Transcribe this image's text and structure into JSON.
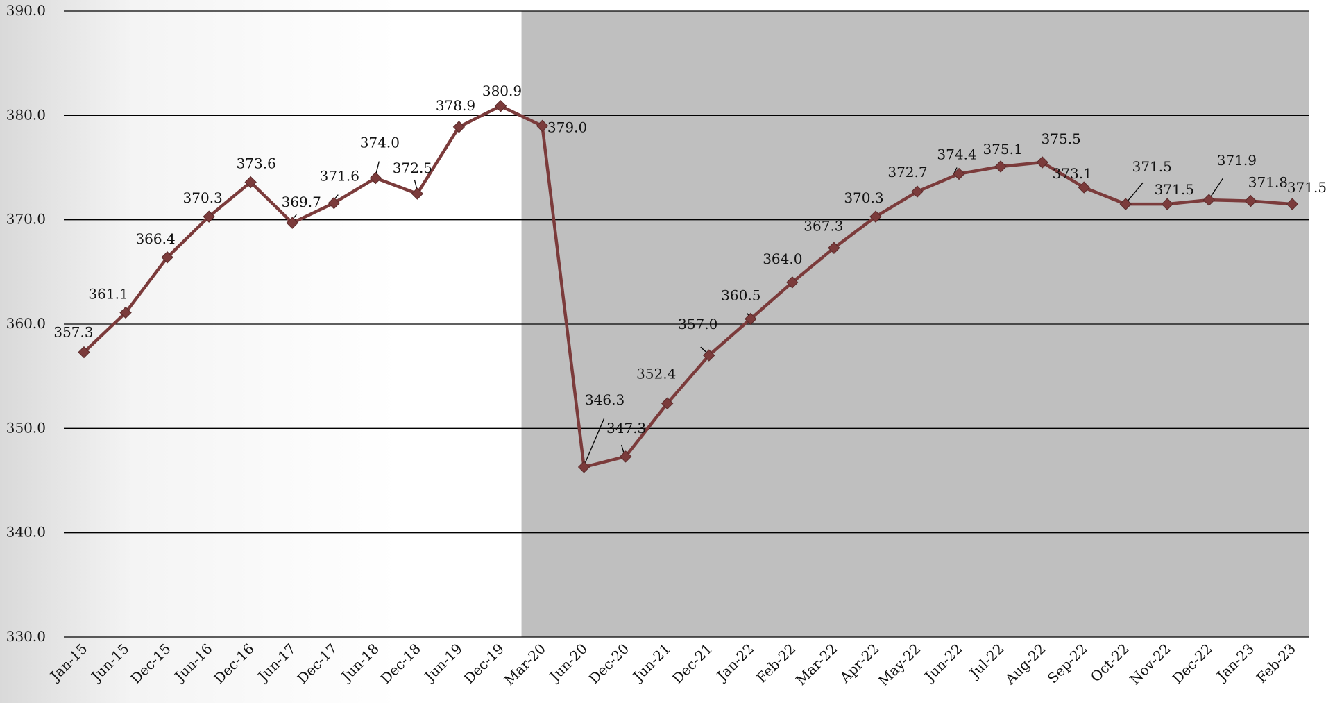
{
  "chart_data": {
    "type": "line",
    "title": "",
    "xlabel": "",
    "ylabel": "",
    "ylim": [
      330,
      390
    ],
    "yticks": [
      "330.0",
      "340.0",
      "350.0",
      "360.0",
      "370.0",
      "380.0",
      "390.0"
    ],
    "grid": "horizontal",
    "shaded_region": {
      "from": "Mar-20",
      "to": "Feb-23",
      "color": "#bfbfbf"
    },
    "line_color": "#7b3b3b",
    "categories": [
      "Jan-15",
      "Jun-15",
      "Dec-15",
      "Jun-16",
      "Dec-16",
      "Jun-17",
      "Dec-17",
      "Jun-18",
      "Dec-18",
      "Jun-19",
      "Dec-19",
      "Mar-20",
      "Jun-20",
      "Dec-20",
      "Jun-21",
      "Dec-21",
      "Jan-22",
      "Feb-22",
      "Mar-22",
      "Apr-22",
      "May-22",
      "Jun-22",
      "Jul-22",
      "Aug-22",
      "Sep-22",
      "Oct-22",
      "Nov-22",
      "Dec-22",
      "Jan-23",
      "Feb-23"
    ],
    "values": [
      357.3,
      361.1,
      366.4,
      370.3,
      373.6,
      369.7,
      371.6,
      374.0,
      372.5,
      378.9,
      380.9,
      379.0,
      346.3,
      347.3,
      352.4,
      357.0,
      360.5,
      364.0,
      367.3,
      370.3,
      372.7,
      374.4,
      375.1,
      375.5,
      373.1,
      371.5,
      371.5,
      371.9,
      371.8,
      371.5
    ],
    "labels": [
      "357.3",
      "361.1",
      "366.4",
      "370.3",
      "373.6",
      "369.7",
      "371.6",
      "374.0",
      "372.5",
      "378.9",
      "380.9",
      "379.0",
      "346.3",
      "347.3",
      "352.4",
      "357.0",
      "360.5",
      "364.0",
      "367.3",
      "370.3",
      "372.7",
      "374.4",
      "375.1",
      "375.5",
      "373.1",
      "371.5",
      "371.5",
      "371.9",
      "371.8",
      "371.5"
    ]
  }
}
